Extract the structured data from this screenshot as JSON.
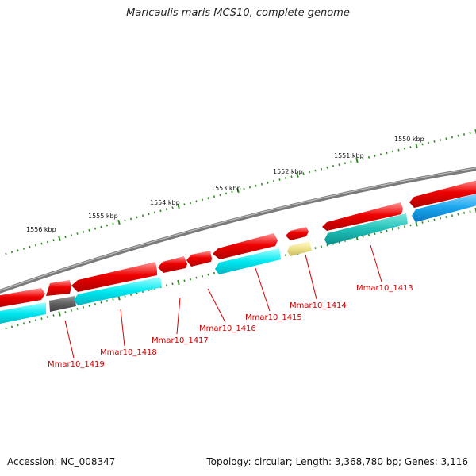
{
  "title": "Maricaulis maris MCS10, complete genome",
  "footer": {
    "accession": "Accession: NC_008347",
    "topology": "Topology: circular; Length: 3,368,780 bp; Genes: 3,116"
  },
  "colors": {
    "forward_gene": "#e10000",
    "reverse_gene": "#00e5ee",
    "reverse_gene_alt": "#00bfbf",
    "reverse_gene_blue": "#1da8e8",
    "backbone": "#7a7a7a",
    "ticks": "#2e8b1f",
    "label": "#d40000",
    "pseudo_gray": "#6b6b6b",
    "pseudo_yellow": "#f0e68c"
  },
  "kbp_labels": [
    "1550 kbp",
    "1551 kbp",
    "1552 kbp",
    "1553 kbp",
    "1554 kbp",
    "1555 kbp",
    "1556 kbp"
  ],
  "genes": [
    {
      "label": "Mmar10_1413"
    },
    {
      "label": "Mmar10_1414"
    },
    {
      "label": "Mmar10_1415"
    },
    {
      "label": "Mmar10_1416"
    },
    {
      "label": "Mmar10_1417"
    },
    {
      "label": "Mmar10_1418"
    },
    {
      "label": "Mmar10_1419"
    }
  ]
}
